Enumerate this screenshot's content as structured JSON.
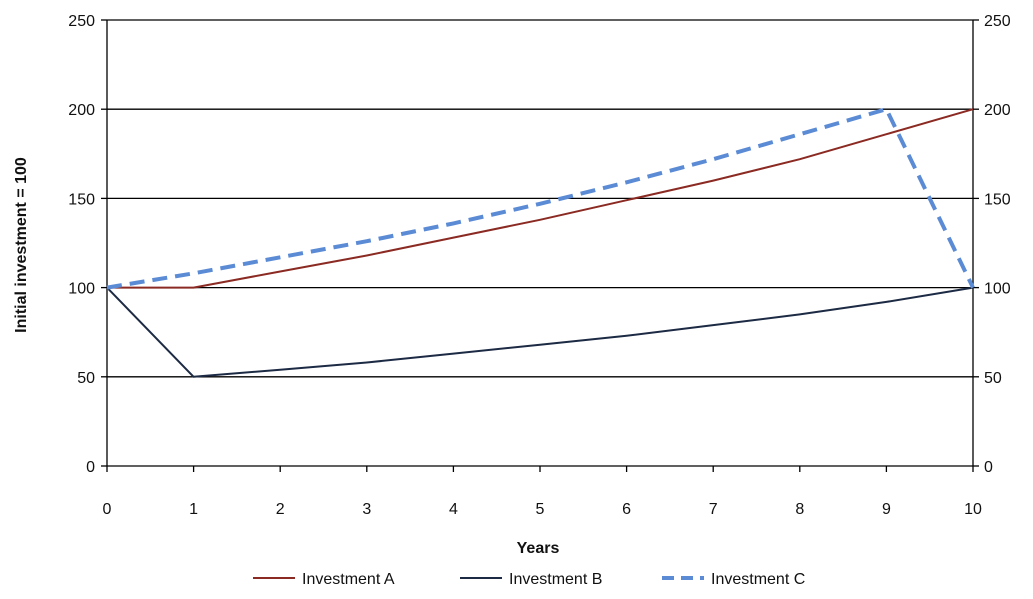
{
  "chart_data": {
    "type": "line",
    "title": "",
    "xlabel": "Years",
    "ylabel": "Initial investment = 100",
    "x": [
      0,
      1,
      2,
      3,
      4,
      5,
      6,
      7,
      8,
      9,
      10
    ],
    "xlim": [
      0,
      10
    ],
    "ylim": [
      0,
      250
    ],
    "xticks": [
      "0",
      "1",
      "2",
      "3",
      "4",
      "5",
      "6",
      "7",
      "8",
      "9",
      "10"
    ],
    "yticks": [
      "0",
      "50",
      "100",
      "150",
      "200",
      "250"
    ],
    "ytick_values": [
      0,
      50,
      100,
      150,
      200,
      250
    ],
    "secondary_y_axis": true,
    "grid": "horizontal",
    "legend_position": "bottom",
    "series": [
      {
        "name": "Investment A",
        "color": "#8b2a22",
        "style": "solid",
        "points": [
          [
            0,
            100
          ],
          [
            1,
            100
          ],
          [
            2,
            109
          ],
          [
            3,
            118
          ],
          [
            4,
            128
          ],
          [
            5,
            138
          ],
          [
            6,
            149
          ],
          [
            7,
            160
          ],
          [
            8,
            172
          ],
          [
            9,
            186
          ],
          [
            10,
            200
          ]
        ]
      },
      {
        "name": "Investment B",
        "color": "#1c2a44",
        "style": "solid",
        "points": [
          [
            0,
            100
          ],
          [
            1,
            50
          ],
          [
            2,
            54
          ],
          [
            3,
            58
          ],
          [
            4,
            63
          ],
          [
            5,
            68
          ],
          [
            6,
            73
          ],
          [
            7,
            79
          ],
          [
            8,
            85
          ],
          [
            9,
            92
          ],
          [
            10,
            100
          ]
        ]
      },
      {
        "name": "Investment C",
        "color": "#5b8bd4",
        "style": "dashed",
        "points": [
          [
            0,
            100
          ],
          [
            1,
            108
          ],
          [
            2,
            117
          ],
          [
            3,
            126
          ],
          [
            4,
            136
          ],
          [
            5,
            147
          ],
          [
            6,
            159
          ],
          [
            7,
            172
          ],
          [
            8,
            186
          ],
          [
            9,
            200
          ],
          [
            10,
            100
          ]
        ]
      }
    ]
  }
}
